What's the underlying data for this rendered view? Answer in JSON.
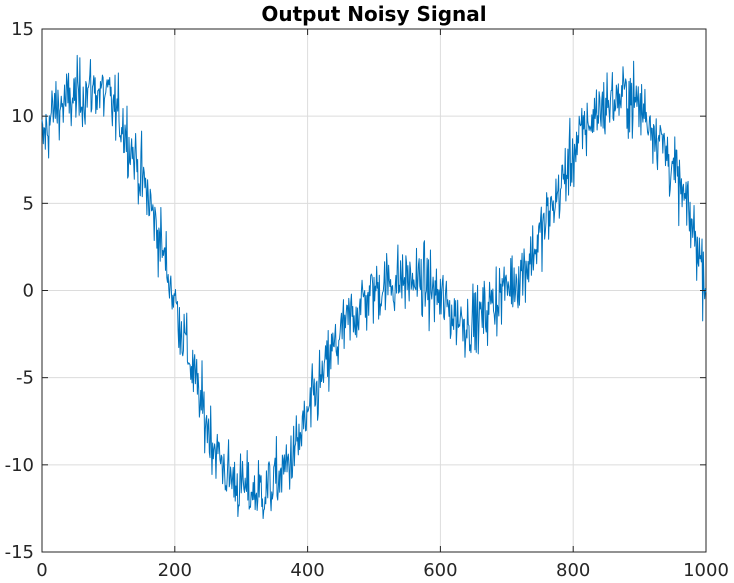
{
  "chart_data": {
    "type": "line",
    "title": "Output Noisy Signal",
    "xlabel": "",
    "ylabel": "",
    "xlim": [
      0,
      1000
    ],
    "ylim": [
      -15,
      15
    ],
    "x_ticks": [
      0,
      200,
      400,
      600,
      800,
      1000
    ],
    "y_ticks": [
      -15,
      -10,
      -5,
      0,
      5,
      10,
      15
    ],
    "grid": true,
    "legend": "none",
    "series": [
      {
        "color": "#0072bd",
        "trend": {
          "x": [
            0,
            20,
            40,
            60,
            80,
            100,
            120,
            140,
            160,
            180,
            200,
            220,
            240,
            260,
            280,
            300,
            320,
            340,
            360,
            380,
            400,
            420,
            440,
            460,
            480,
            500,
            520,
            540,
            560,
            580,
            600,
            620,
            640,
            660,
            680,
            700,
            720,
            740,
            760,
            780,
            800,
            820,
            840,
            860,
            880,
            900,
            920,
            940,
            960,
            980,
            1000
          ],
          "y": [
            8.5,
            10.5,
            10.8,
            11.3,
            11.6,
            11.0,
            9.7,
            7.6,
            5.3,
            2.6,
            -0.6,
            -3.6,
            -6.6,
            -9.0,
            -10.6,
            -11.3,
            -11.6,
            -11.4,
            -10.6,
            -9.3,
            -7.3,
            -5.2,
            -3.3,
            -1.9,
            -0.8,
            0.0,
            0.4,
            0.6,
            0.6,
            0.3,
            -0.5,
            -1.4,
            -1.8,
            -1.6,
            -0.6,
            0.2,
            0.9,
            2.2,
            4.0,
            5.8,
            7.9,
            9.4,
            10.5,
            10.9,
            11.2,
            10.6,
            9.5,
            8.0,
            6.0,
            3.6,
            0.6
          ]
        },
        "noise_amplitude": 1.3,
        "points": 1000
      }
    ]
  }
}
